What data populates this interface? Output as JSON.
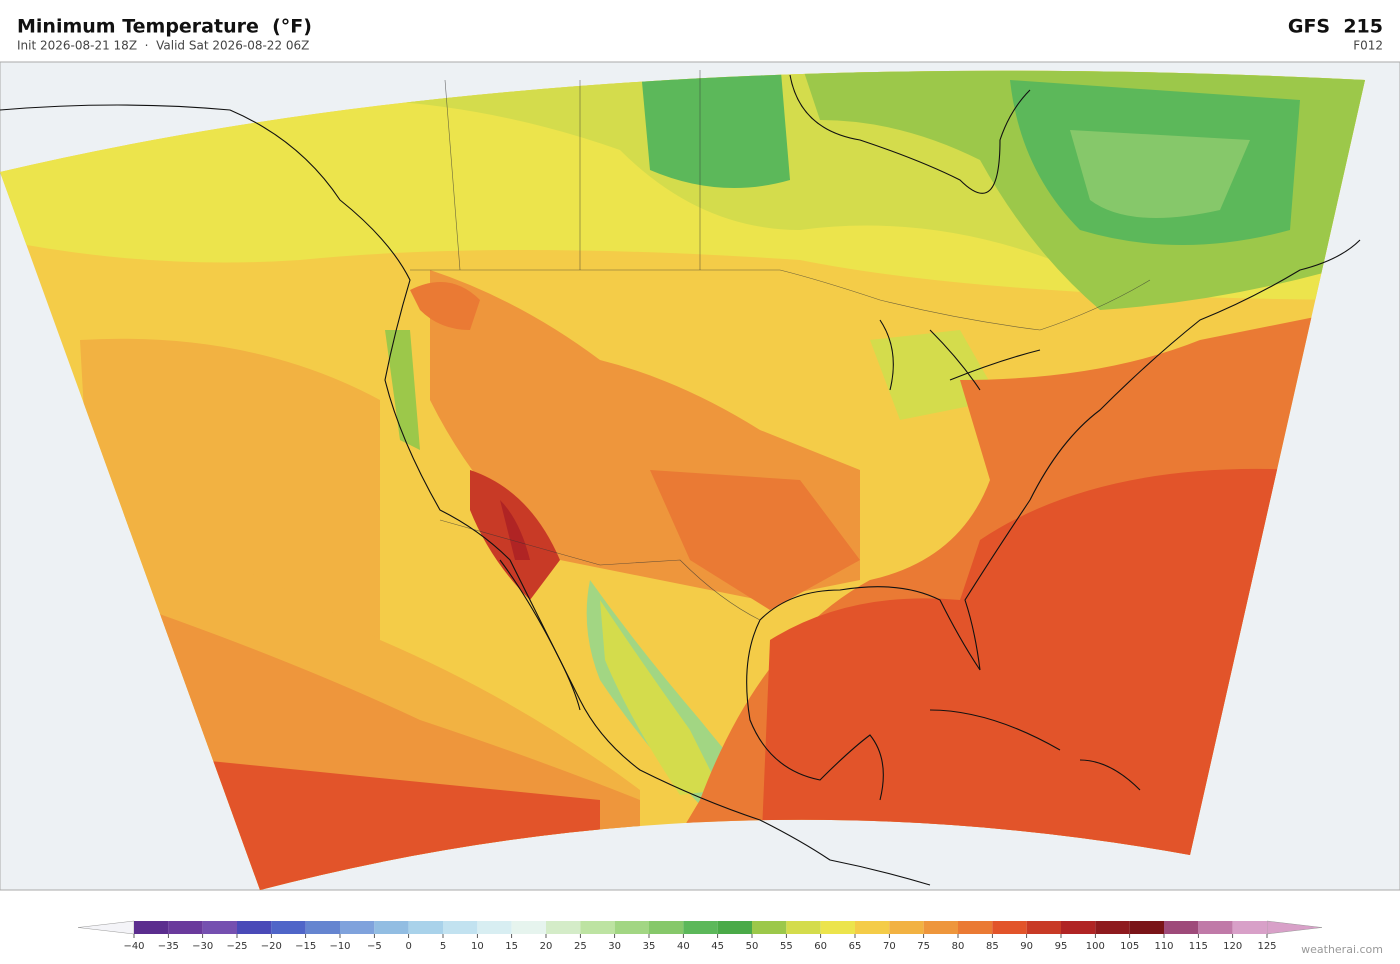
{
  "header": {
    "title": "Minimum Temperature  (°F)",
    "subtitle": "Init 2026-08-21 18Z  ·  Valid Sat 2026-08-22 06Z",
    "model": "GFS  215",
    "forecast_hour": "F012"
  },
  "colorbar": {
    "ticks": [
      {
        "value": -40,
        "label": "−40"
      },
      {
        "value": -35,
        "label": "−35"
      },
      {
        "value": -30,
        "label": "−30"
      },
      {
        "value": -25,
        "label": "−25"
      },
      {
        "value": -20,
        "label": "−20"
      },
      {
        "value": -15,
        "label": "−15"
      },
      {
        "value": -10,
        "label": "−10"
      },
      {
        "value": -5,
        "label": "−5"
      },
      0,
      5,
      10,
      15,
      20,
      25,
      30,
      35,
      40,
      45,
      50,
      55,
      60,
      65,
      70,
      75,
      80,
      85,
      90,
      95,
      100,
      105,
      110,
      115,
      120,
      125
    ],
    "colors": [
      "#5b2d8e",
      "#6a3a9c",
      "#7550b0",
      "#4a4ab8",
      "#4f65c8",
      "#6585d0",
      "#7fa2dc",
      "#92bde2",
      "#a9d2ea",
      "#c2e2f0",
      "#d8eef2",
      "#e6f4ee",
      "#d4ecc8",
      "#bde3a2",
      "#a2d683",
      "#86c86a",
      "#5cb85a",
      "#4aaa48",
      "#9cc84a",
      "#d4dc4c",
      "#ece44c",
      "#f4cc48",
      "#f2b242",
      "#ee963c",
      "#ea7a34",
      "#e2542a",
      "#c83a26",
      "#b02424",
      "#8e1a1e",
      "#7a1418",
      "#9e4a7a",
      "#c07aa8",
      "#d8a0c8"
    ],
    "under_color": "#f4f4f8",
    "over_color": "#d8a0c8"
  },
  "watermark": "weatherai.com"
}
